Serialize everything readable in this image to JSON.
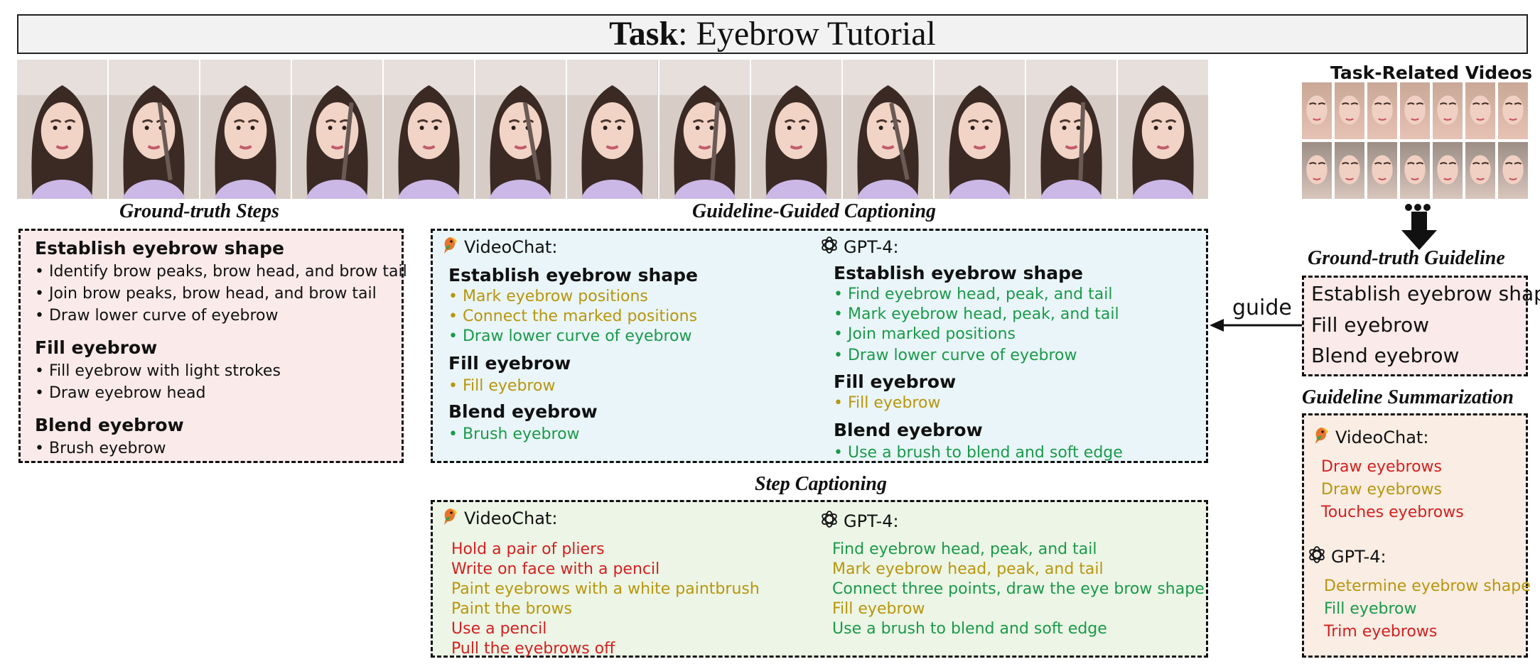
{
  "title": {
    "bold": "Task",
    "rest": ": Eyebrow Tutorial"
  },
  "frame_count": 13,
  "related_videos": {
    "label": "Task-Related Videos",
    "rows": 2,
    "cols": 7
  },
  "ground_truth_steps": {
    "heading": "Ground-truth Steps",
    "groups": [
      {
        "title": "Establish eyebrow shape",
        "items": [
          "Identify brow peaks, brow head, and brow tail",
          "Join brow peaks, brow head, and brow tail",
          "Draw lower curve of eyebrow"
        ]
      },
      {
        "title": "Fill eyebrow",
        "items": [
          "Fill eyebrow with light strokes",
          "Draw eyebrow head"
        ]
      },
      {
        "title": "Blend eyebrow",
        "items": [
          "Brush eyebrow"
        ]
      }
    ]
  },
  "guided_captioning": {
    "heading": "Guideline-Guided Captioning",
    "videochat": {
      "label": "VideoChat:",
      "groups": [
        {
          "title": "Establish eyebrow shape",
          "items": [
            {
              "text": "Mark eyebrow positions",
              "color": "#b8960c"
            },
            {
              "text": "Connect the marked positions",
              "color": "#b8960c"
            },
            {
              "text": "Draw lower curve of eyebrow",
              "color": "#1a9a4a"
            }
          ]
        },
        {
          "title": "Fill eyebrow",
          "items": [
            {
              "text": "Fill eyebrow",
              "color": "#b8960c"
            }
          ]
        },
        {
          "title": "Blend eyebrow",
          "items": [
            {
              "text": "Brush eyebrow",
              "color": "#1a9a4a"
            }
          ]
        }
      ]
    },
    "gpt4": {
      "label": "GPT-4:",
      "groups": [
        {
          "title": "Establish eyebrow shape",
          "items": [
            {
              "text": "Find eyebrow head, peak, and tail",
              "color": "#1a9a4a"
            },
            {
              "text": "Mark eyebrow head, peak, and tail",
              "color": "#1a9a4a"
            },
            {
              "text": "Join marked positions",
              "color": "#1a9a4a"
            },
            {
              "text": "Draw lower curve of eyebrow",
              "color": "#1a9a4a"
            }
          ]
        },
        {
          "title": "Fill eyebrow",
          "items": [
            {
              "text": "Fill eyebrow",
              "color": "#b8960c"
            }
          ]
        },
        {
          "title": "Blend eyebrow",
          "items": [
            {
              "text": "Use a brush to blend and soft edge",
              "color": "#1a9a4a"
            }
          ]
        }
      ]
    }
  },
  "step_captioning": {
    "heading": "Step Captioning",
    "videochat": {
      "label": "VideoChat:",
      "items": [
        {
          "text": "Hold a pair of pliers",
          "color": "#d42020"
        },
        {
          "text": "Write on face with a pencil",
          "color": "#d42020"
        },
        {
          "text": "Paint eyebrows with a white paintbrush",
          "color": "#b8960c"
        },
        {
          "text": "Paint the brows",
          "color": "#b8960c"
        },
        {
          "text": "Use a pencil",
          "color": "#d42020"
        },
        {
          "text": "Pull the eyebrows off",
          "color": "#d42020"
        }
      ]
    },
    "gpt4": {
      "label": "GPT-4:",
      "items": [
        {
          "text": "Find eyebrow head, peak, and tail",
          "color": "#1a9a4a"
        },
        {
          "text": "Mark eyebrow head, peak, and tail",
          "color": "#b8960c"
        },
        {
          "text": "Connect three points, draw the eye brow shape",
          "color": "#1a9a4a"
        },
        {
          "text": "Fill eyebrow",
          "color": "#b8960c"
        },
        {
          "text": "Use a brush to blend and soft edge",
          "color": "#1a9a4a"
        }
      ]
    }
  },
  "ground_truth_guideline": {
    "heading": "Ground-truth Guideline",
    "items": [
      "Establish eyebrow shape",
      "Fill eyebrow",
      "Blend eyebrow"
    ],
    "arrow_label": "guide"
  },
  "guideline_summarization": {
    "heading": "Guideline Summarization",
    "videochat": {
      "label": "VideoChat:",
      "items": [
        {
          "text": "Draw eyebrows",
          "color": "#d42020"
        },
        {
          "text": "Draw eyebrows",
          "color": "#b8960c"
        },
        {
          "text": "Touches eyebrows",
          "color": "#d42020"
        }
      ]
    },
    "gpt4": {
      "label": "GPT-4:",
      "items": [
        {
          "text": "Determine eyebrow shape",
          "color": "#b8960c"
        },
        {
          "text": "Fill eyebrow",
          "color": "#1a9a4a"
        },
        {
          "text": "Trim eyebrows",
          "color": "#d42020"
        }
      ]
    }
  }
}
